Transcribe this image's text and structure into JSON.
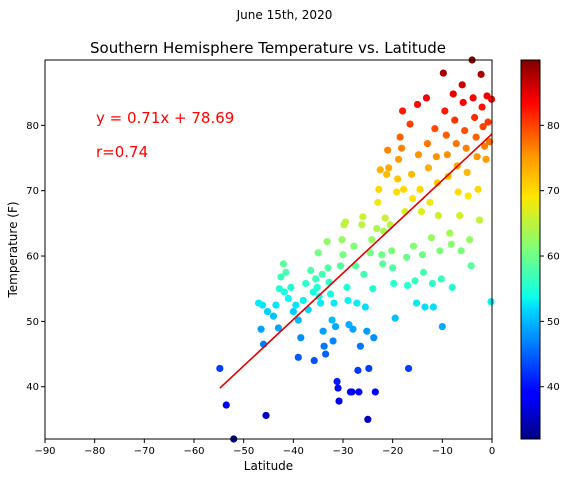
{
  "figure": {
    "suptitle": "June 15th, 2020"
  },
  "chart_data": {
    "type": "scatter",
    "title": "Southern Hemisphere Temperature vs. Latitude",
    "xlabel": "Latitude",
    "ylabel": "Temperature (F)",
    "xlim": [
      -90,
      0
    ],
    "ylim": [
      32,
      90
    ],
    "xticks": [
      -90,
      -80,
      -70,
      -60,
      -50,
      -40,
      -30,
      -20,
      -10,
      0
    ],
    "yticks": [
      40,
      50,
      60,
      70,
      80
    ],
    "grid": false,
    "colormap": "jet",
    "colorbar": {
      "min": 32,
      "max": 90,
      "ticks": [
        40,
        50,
        60,
        70,
        80
      ]
    },
    "regression": {
      "equation": "y = 0.71x + 78.69",
      "r_label": "r=0.74",
      "slope": 0.71,
      "intercept": 78.69,
      "x_range": [
        -54.8,
        0
      ],
      "color": "#e00000"
    },
    "annotation_color": "#ff0000",
    "points": [
      [
        -54.8,
        42.8
      ],
      [
        -53.5,
        37.2
      ],
      [
        -52,
        32
      ],
      [
        -45.5,
        35.6
      ],
      [
        -46,
        46.5
      ],
      [
        -46.5,
        48.8
      ],
      [
        -46.2,
        52.5
      ],
      [
        -47,
        52.8
      ],
      [
        -45.2,
        51.5
      ],
      [
        -44,
        50.8
      ],
      [
        -43.5,
        52.5
      ],
      [
        -43,
        49
      ],
      [
        -42.8,
        55
      ],
      [
        -42.5,
        56.8
      ],
      [
        -42,
        58.8
      ],
      [
        -41.5,
        57.5
      ],
      [
        -41.8,
        54.5
      ],
      [
        -41,
        53.5
      ],
      [
        -40.5,
        55.2
      ],
      [
        -40,
        51.5
      ],
      [
        -39.5,
        52.5
      ],
      [
        -39,
        50.2
      ],
      [
        -38.5,
        47.5
      ],
      [
        -38,
        53.2
      ],
      [
        -37.5,
        55.8
      ],
      [
        -37,
        51.8
      ],
      [
        -36.5,
        57.8
      ],
      [
        -36,
        54.5
      ],
      [
        -39,
        44.5
      ],
      [
        -35.8,
        44
      ],
      [
        -35,
        60.5
      ],
      [
        -35.5,
        56.5
      ],
      [
        -35.2,
        55.2
      ],
      [
        -34.8,
        53.8
      ],
      [
        -34.5,
        52.8
      ],
      [
        -34.2,
        57.2
      ],
      [
        -34,
        48.5
      ],
      [
        -33.8,
        46.2
      ],
      [
        -33.5,
        45
      ],
      [
        -33.2,
        62.2
      ],
      [
        -33,
        58.2
      ],
      [
        -32.8,
        56
      ],
      [
        -32.5,
        54.2
      ],
      [
        -32.2,
        50.2
      ],
      [
        -32,
        47
      ],
      [
        -31.8,
        52.8
      ],
      [
        -31.5,
        49.2
      ],
      [
        -31.2,
        40.8
      ],
      [
        -31,
        39.8
      ],
      [
        -30.8,
        37.8
      ],
      [
        -30.5,
        58.5
      ],
      [
        -30.2,
        62.5
      ],
      [
        -30,
        60.2
      ],
      [
        -29.8,
        64.8
      ],
      [
        -29.5,
        65.2
      ],
      [
        -29.2,
        55.2
      ],
      [
        -29,
        53.2
      ],
      [
        -28.8,
        49.5
      ],
      [
        -28.5,
        39.2
      ],
      [
        -28.2,
        39.2
      ],
      [
        -28,
        48.8
      ],
      [
        -27.8,
        61.5
      ],
      [
        -27.5,
        58.5
      ],
      [
        -27.2,
        52.8
      ],
      [
        -27,
        42.5
      ],
      [
        -26.8,
        39.2
      ],
      [
        -26.5,
        46.2
      ],
      [
        -26.2,
        64.8
      ],
      [
        -26,
        66
      ],
      [
        -25.8,
        57.2
      ],
      [
        -25.5,
        52.2
      ],
      [
        -25.2,
        48.5
      ],
      [
        -25,
        35
      ],
      [
        -24.8,
        42.8
      ],
      [
        -24.5,
        60.5
      ],
      [
        -24.2,
        62.5
      ],
      [
        -24,
        55
      ],
      [
        -23.8,
        47.5
      ],
      [
        -23.5,
        39.2
      ],
      [
        -23.2,
        64.2
      ],
      [
        -23,
        68.2
      ],
      [
        -22.8,
        70.2
      ],
      [
        -22.5,
        73.2
      ],
      [
        -22.2,
        60.2
      ],
      [
        -22,
        58.8
      ],
      [
        -21.8,
        63.8
      ],
      [
        -21.5,
        65.8
      ],
      [
        -21.2,
        72.5
      ],
      [
        -21,
        76.2
      ],
      [
        -20.8,
        73.5
      ],
      [
        -20.5,
        64.8
      ],
      [
        -20.2,
        60.8
      ],
      [
        -20,
        58.2
      ],
      [
        -19.8,
        55.8
      ],
      [
        -19.5,
        50.5
      ],
      [
        -19.2,
        69.8
      ],
      [
        -19,
        71.8
      ],
      [
        -18.8,
        74.8
      ],
      [
        -18.5,
        78.2
      ],
      [
        -18.2,
        76.5
      ],
      [
        -18,
        82.2
      ],
      [
        -17.8,
        70.2
      ],
      [
        -17.5,
        66.8
      ],
      [
        -17.2,
        59.8
      ],
      [
        -17,
        55.5
      ],
      [
        -16.8,
        42.8
      ],
      [
        -16.5,
        80.2
      ],
      [
        -16.2,
        72.5
      ],
      [
        -16,
        68.8
      ],
      [
        -15.8,
        61.5
      ],
      [
        -15.5,
        56.2
      ],
      [
        -15.2,
        52.8
      ],
      [
        -15,
        83.2
      ],
      [
        -14.8,
        75.5
      ],
      [
        -14.5,
        70.2
      ],
      [
        -14.2,
        66.8
      ],
      [
        -14,
        60.2
      ],
      [
        -13.8,
        57.5
      ],
      [
        -13.5,
        52.2
      ],
      [
        -13.2,
        84.2
      ],
      [
        -13,
        77.2
      ],
      [
        -12.8,
        73.5
      ],
      [
        -12.5,
        68.2
      ],
      [
        -12.2,
        62.8
      ],
      [
        -12,
        55.8
      ],
      [
        -11.8,
        52.2
      ],
      [
        -11.5,
        79.5
      ],
      [
        -11.2,
        75.2
      ],
      [
        -11,
        71.2
      ],
      [
        -10.8,
        66.2
      ],
      [
        -10.5,
        60.8
      ],
      [
        -10.2,
        56.5
      ],
      [
        -10,
        49.2
      ],
      [
        -9.8,
        88
      ],
      [
        -9.5,
        82.2
      ],
      [
        -9.2,
        78.5
      ],
      [
        -9,
        75.5
      ],
      [
        -8.8,
        72.2
      ],
      [
        -8.5,
        63.5
      ],
      [
        -8.2,
        61.8
      ],
      [
        -8,
        55.2
      ],
      [
        -7.8,
        84.8
      ],
      [
        -7.5,
        80.8
      ],
      [
        -7.2,
        77.2
      ],
      [
        -7,
        73.8
      ],
      [
        -6.8,
        69.8
      ],
      [
        -6.5,
        66.2
      ],
      [
        -6.2,
        60.8
      ],
      [
        -6,
        86.2
      ],
      [
        -5.8,
        83.5
      ],
      [
        -5.5,
        79.2
      ],
      [
        -5.2,
        76.5
      ],
      [
        -5,
        72.8
      ],
      [
        -4.8,
        69.2
      ],
      [
        -4.5,
        62.5
      ],
      [
        -4.2,
        58.5
      ],
      [
        -4,
        90
      ],
      [
        -3.8,
        84.2
      ],
      [
        -3.5,
        81.2
      ],
      [
        -3.2,
        78.2
      ],
      [
        -3,
        75.2
      ],
      [
        -2.8,
        70.2
      ],
      [
        -2.5,
        65.5
      ],
      [
        -2.2,
        87.8
      ],
      [
        -2,
        82.8
      ],
      [
        -1.8,
        79.8
      ],
      [
        -1.5,
        76.8
      ],
      [
        -1.2,
        74.8
      ],
      [
        -1,
        84.5
      ],
      [
        -0.8,
        80.5
      ],
      [
        -0.5,
        77.5
      ],
      [
        -0.2,
        53
      ],
      [
        -0.1,
        84
      ]
    ]
  }
}
